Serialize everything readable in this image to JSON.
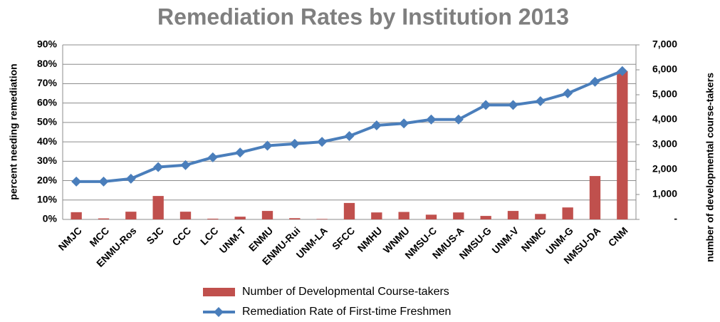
{
  "chart_data": {
    "type": "bar_line",
    "title": "Remediation Rates by Institution 2013",
    "y_label": "percent needing remediation",
    "y2_label": "number of developmental course-takers",
    "categories": [
      "NMJC",
      "MCC",
      "ENMU-Ros",
      "SJC",
      "CCC",
      "LCC",
      "UNM-T",
      "ENMU",
      "ENMU-Rui",
      "UNM-LA",
      "SFCC",
      "NMHU",
      "WNMU",
      "NMSU-C",
      "NMUS-A",
      "NMSU-G",
      "UNM-V",
      "NNMC",
      "UNM-G",
      "NMSU-DA",
      "CNM"
    ],
    "series": [
      {
        "name": "Number of Developmental Course-takers",
        "type": "bar",
        "axis": "y2",
        "color": "#c0504d",
        "values": [
          290,
          40,
          310,
          940,
          310,
          30,
          110,
          340,
          50,
          20,
          660,
          280,
          300,
          190,
          280,
          140,
          340,
          220,
          480,
          1740,
          5950
        ]
      },
      {
        "name": "Remediation Rate of First-time Freshmen",
        "type": "line",
        "axis": "y",
        "color": "#4a7ebb",
        "values": [
          19.5,
          19.5,
          21,
          27,
          28,
          32,
          34.5,
          38,
          39,
          40,
          43,
          48.5,
          49.5,
          51.5,
          51.5,
          59,
          59,
          61,
          65,
          71,
          76.5
        ]
      }
    ],
    "ylim": [
      0,
      90
    ],
    "yticks": [
      {
        "value": 0,
        "label": "0%"
      },
      {
        "value": 10,
        "label": "10%"
      },
      {
        "value": 20,
        "label": "20%"
      },
      {
        "value": 30,
        "label": "30%"
      },
      {
        "value": 40,
        "label": "40%"
      },
      {
        "value": 50,
        "label": "50%"
      },
      {
        "value": 60,
        "label": "60%"
      },
      {
        "value": 70,
        "label": "70%"
      },
      {
        "value": 80,
        "label": "80%"
      },
      {
        "value": 90,
        "label": "90%"
      }
    ],
    "y2lim": [
      0,
      7000
    ],
    "y2ticks": [
      {
        "value": 0,
        "label": "-"
      },
      {
        "value": 1000,
        "label": "1,000"
      },
      {
        "value": 2000,
        "label": "2,000"
      },
      {
        "value": 3000,
        "label": "3,000"
      },
      {
        "value": 4000,
        "label": "4,000"
      },
      {
        "value": 5000,
        "label": "5,000"
      },
      {
        "value": 6000,
        "label": "6,000"
      },
      {
        "value": 7000,
        "label": "7,000"
      }
    ],
    "grid": true
  }
}
